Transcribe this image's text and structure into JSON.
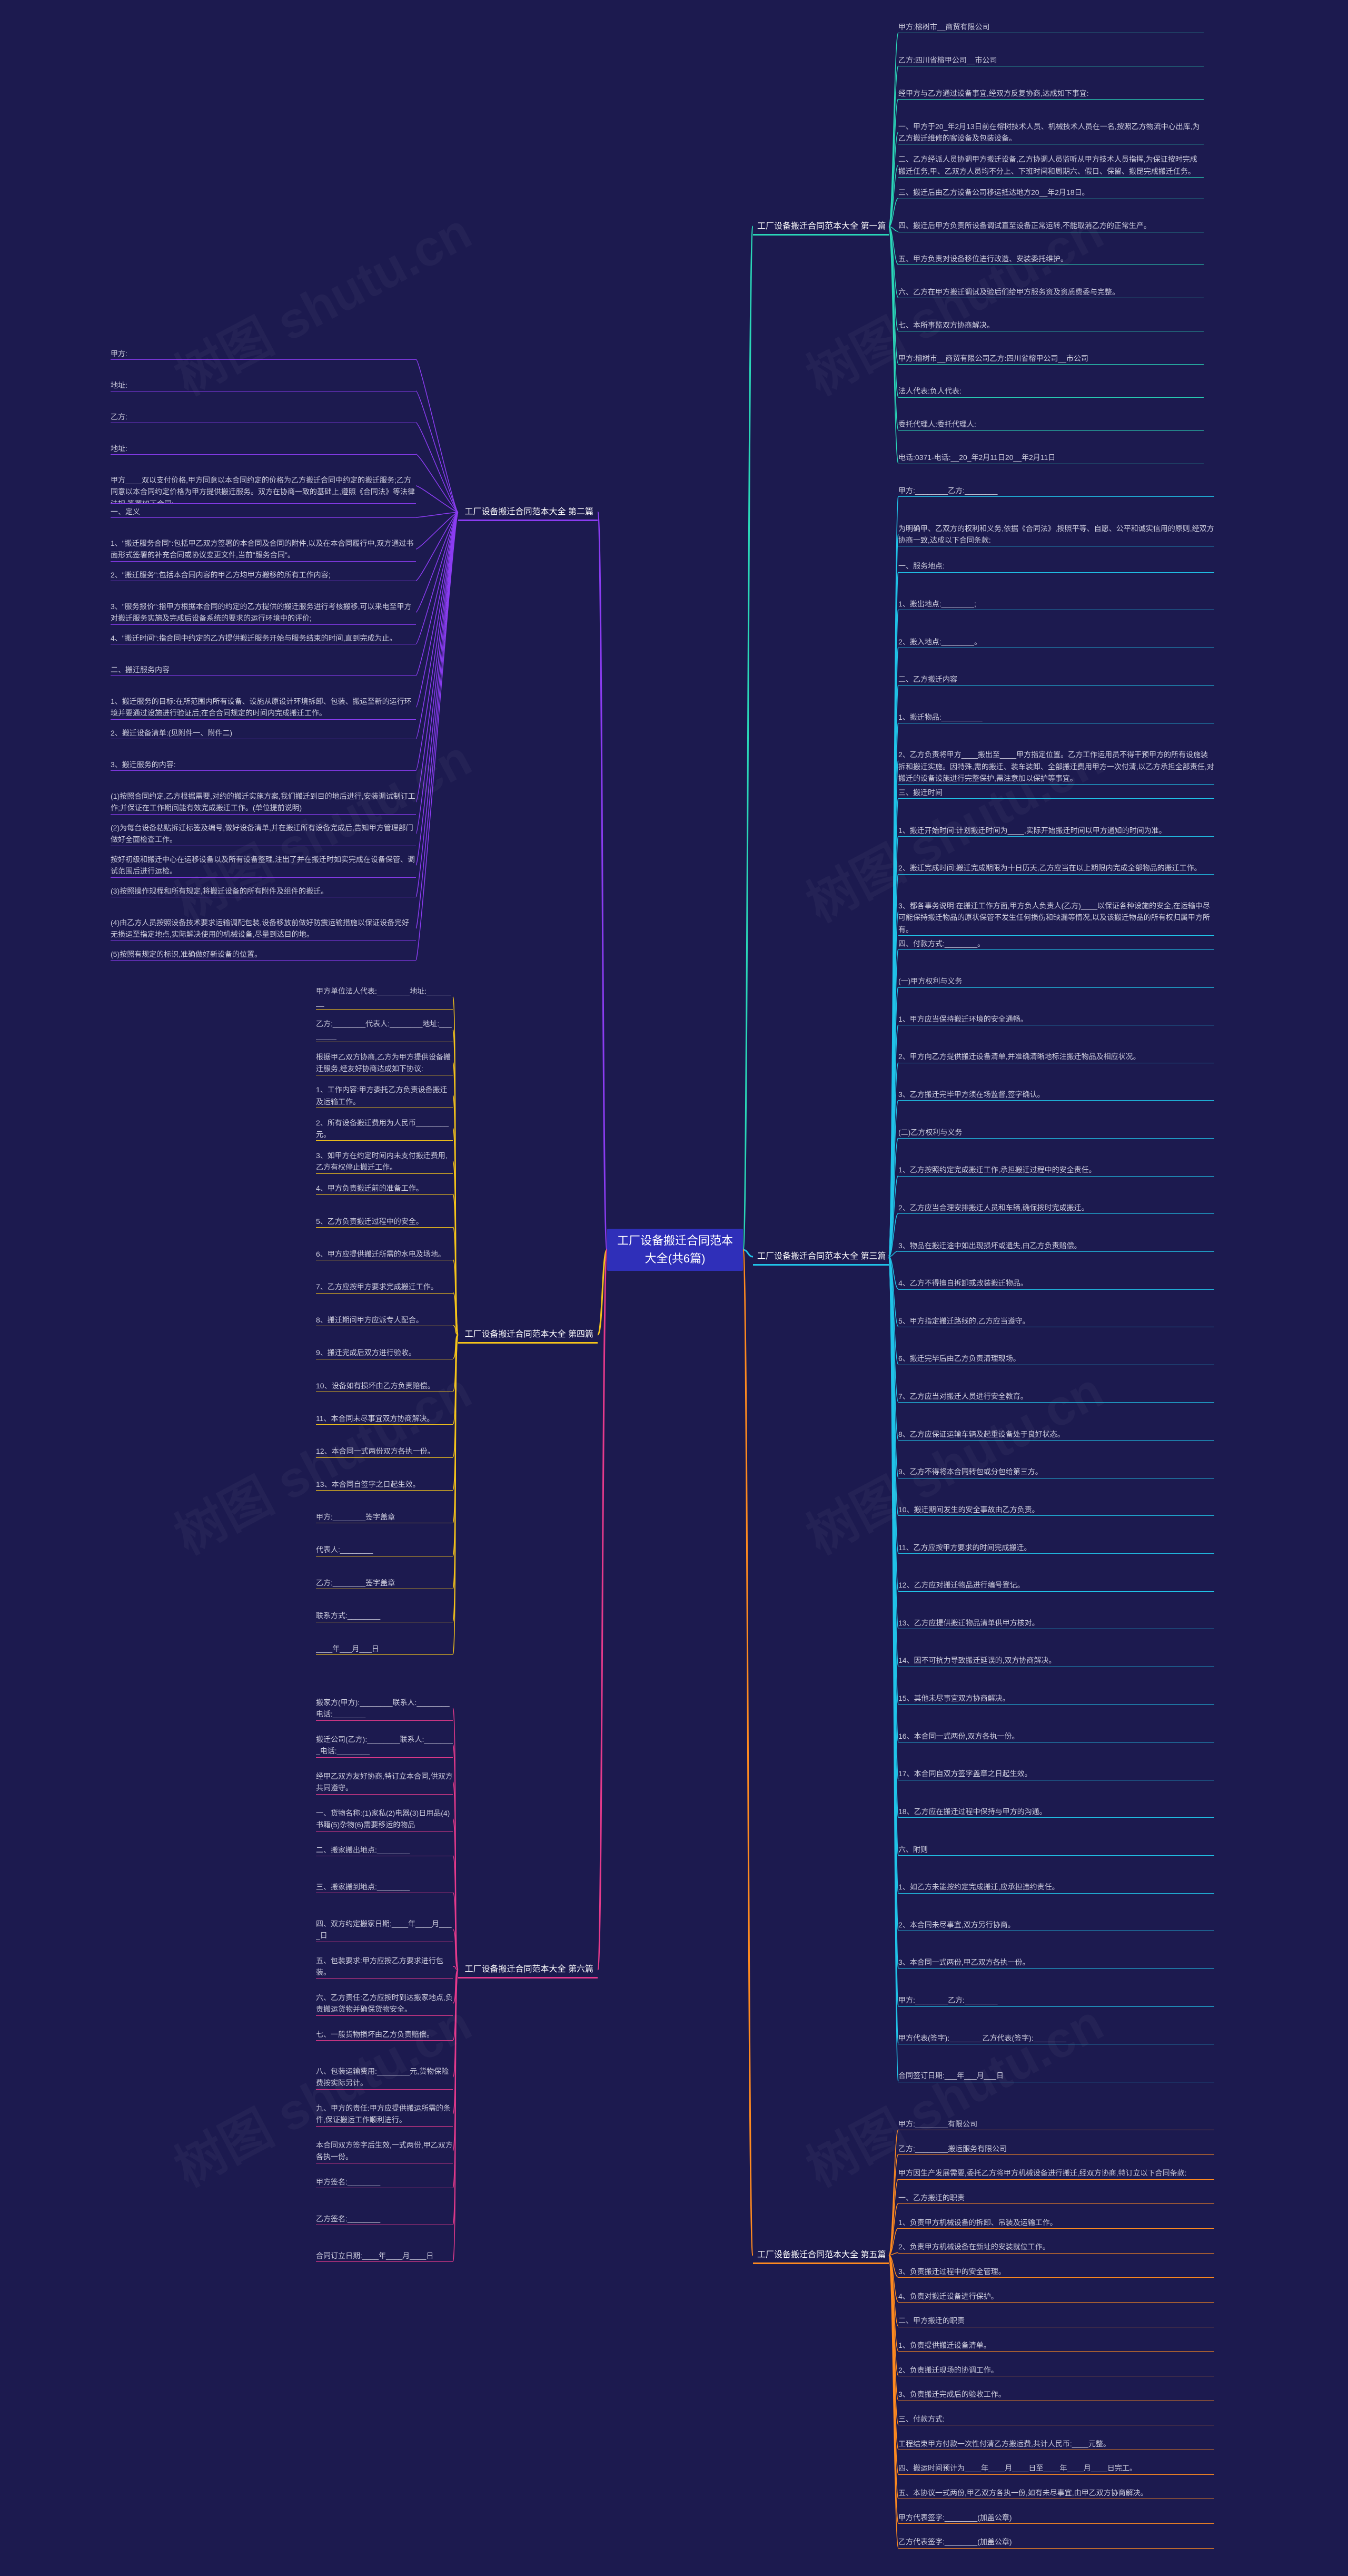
{
  "colors": {
    "background": "#1c1a4f",
    "center_fill": "#2f2fb9",
    "branch1": "#2ad7b8",
    "branch2": "#8b3cf2",
    "branch3": "#20c3e8",
    "branch4": "#f5c41a",
    "branch5": "#ff8a1f",
    "branch6": "#e63a8c"
  },
  "title": "工厂设备搬迁合同范本大全(共6篇)",
  "watermark": "树图 shutu.cn",
  "branches": {
    "b1": {
      "label": "工厂设备搬迁合同范本大全 第一篇",
      "items": [
        "甲方:榕树市__商贸有限公司",
        "乙方:四川省榕甲公司__市公司",
        "经甲方与乙方通过设备事宜,经双方反复协商,达成如下事宜:",
        "一、甲方于20_年2月13日前在榕树技术人员、机械技术人员在一名,按照乙方物流中心出库,为乙方搬迁维修的客设备及包装设备。",
        "二、乙方经派人员协调甲方搬迁设备,乙方协调人员监听从甲方技术人员指挥,为保证按时完成搬迁任务,甲、乙双方人员均不分上、下班时间和周期六、假日、保留、搬昆完成搬迁任务。",
        "三、搬迁后由乙方设备公司移运抵达地方20__年2月18日。",
        "四、搬迁后甲方负责所设备调试直至设备正常运转,不能取消乙方的正常生产。",
        "五、甲方负责对设备移位进行改造、安装委托维护。",
        "六、乙方在甲方搬迁调试及验后们给甲方服务资及资质费委与完整。",
        "七、本所事监双方协商解决。",
        "甲方:榕树市__商贸有限公司乙方:四川省榕甲公司__市公司",
        "法人代表:负人代表:",
        "委托代理人:委托代理人:",
        "电话:0371-电话:__20_年2月11日20__年2月11日"
      ]
    },
    "b2": {
      "label": "工厂设备搬迁合同范本大全 第二篇",
      "items": [
        "甲方:",
        "地址:",
        "乙方:",
        "地址:",
        "甲方____双以支付价格,甲方同意以本合同约定的价格为乙方搬迁合同中约定的搬迁服务;乙方同意以本合同约定价格为甲方提供搬迁服务。双方在协商一致的基础上,遵照《合同法》等法律法规,签署如下合同:",
        "一、定义",
        "1、\"搬迁服务合同\":包括甲乙双方签署的本合同及合同的附件,以及在本合同履行中,双方通过书面形式签署的补充合同或协议变更文件,当前\"服务合同\"。",
        "2、\"搬迁服务\":包括本合同内容的甲乙方均甲方搬移的所有工作内容;",
        "3、\"服务报价\":指甲方根据本合同的约定的乙方提供的搬迁服务进行考核搬移,可以来电至甲方对搬迁服务实施及完成后设备系统的要求的运行环境中的评价;",
        "4、\"搬迁时间\":指合同中约定的乙方提供搬迁服务开始与服务结束的时间,直到完成为止。",
        "二、搬迁服务内容",
        "1、搬迁服务的目标:在所范围内所有设备、设施从原设计环境拆卸、包装、搬运至新的运行环境并要通过设施进行验证后;在合合同规定的时间内完成搬迁工作。",
        "2、搬迁设备清单:(见附件一、附件二)",
        "3、搬迁服务的内容:",
        "(1)按照合同约定,乙方根据需要,对约的搬迁实施方案,我们搬迁到目的地后进行,安装调试制订工作;并保证在工作期间能有效完成搬迁工作。(单位提前说明)",
        "(2)为每台设备粘贴拆迁标签及编号,做好设备清单,并在搬迁所有设备完成后,告知甲方管理部门做好全面检查工作。",
        "按好初级和搬迁中心在运移设备以及所有设备整理,注出了并在搬迁时如实完成在设备保管、调试范围后进行运检。",
        "(3)按照操作规程和所有规定,将搬迁设备的所有附件及组件的搬迁。",
        "(4)由乙方人员按照设备技术要求运输调配包装,设备移放前做好防震运输措施以保证设备完好无损运至指定地点,实际解决使用的机械设备,尽量到达目的地。",
        "(5)按照有规定的标识,准确做好新设备的位置。"
      ]
    },
    "b3": {
      "label": "工厂设备搬迁合同范本大全 第三篇",
      "items": [
        "甲方:________乙方:________",
        "为明确甲、乙双方的权利和义务,依据《合同法》,按照平等、自愿、公平和诚实信用的原则,经双方协商一致,达成以下合同条款:",
        "一、服务地点:",
        "1、搬出地点:________;",
        "2、搬入地点:________。",
        "二、乙方搬迁内容",
        "1、搬迁物品:__________",
        "2、乙方负责将甲方____搬出至____甲方指定位置。乙方工作运用员不得干预甲方的所有设施装拆和搬迁实施。因特殊,需的搬迁、装车装卸、全部搬迁费用甲方一次付清,以乙方承担全部责任,对搬迁的设备设施进行完整保护,需注意加以保护等事宜。",
        "三、搬迁时间",
        "1、搬迁开始时间:计划搬迁时间为____,实际开始搬迁时间以甲方通知的时间为准。",
        "2、搬迁完成时间:搬迁完成期限为十日历天,乙方应当在以上期限内完成全部物品的搬迁工作。",
        "3、都各事务说明:在搬迁工作方面,甲方负人负责人(乙方)____以保证各种设施的安全,在运输中尽可能保持搬迁物品的原状保管不发生任何损伤和缺漏等情况,以及该搬迁物品的所有权归属甲方所有。",
        "四、付款方式:________。",
        "(一)甲方权利与义务",
        "1、甲方应当保持搬迁环境的安全通畅。",
        "2、甲方向乙方提供搬迁设备清单,并准确清晰地标注搬迁物品及相应状况。",
        "3、乙方搬迁完毕甲方须在场监督,签字确认。",
        "(二)乙方权利与义务",
        "1、乙方按照约定完成搬迁工作,承担搬迁过程中的安全责任。",
        "2、乙方应当合理安排搬迁人员和车辆,确保按时完成搬迁。",
        "3、物品在搬迁途中如出现损坏或遗失,由乙方负责赔偿。",
        "4、乙方不得擅自拆卸或改装搬迁物品。",
        "5、甲方指定搬迁路线的,乙方应当遵守。",
        "6、搬迁完毕后由乙方负责清理现场。",
        "7、乙方应当对搬迁人员进行安全教育。",
        "8、乙方应保证运输车辆及起重设备处于良好状态。",
        "9、乙方不得将本合同转包或分包给第三方。",
        "10、搬迁期间发生的安全事故由乙方负责。",
        "11、乙方应按甲方要求的时间完成搬迁。",
        "12、乙方应对搬迁物品进行编号登记。",
        "13、乙方应提供搬迁物品清单供甲方核对。",
        "14、因不可抗力导致搬迁延误的,双方协商解决。",
        "15、其他未尽事宜双方协商解决。",
        "16、本合同一式两份,双方各执一份。",
        "17、本合同自双方签字盖章之日起生效。",
        "18、乙方应在搬迁过程中保持与甲方的沟通。",
        "六、附则",
        "1、如乙方未能按约定完成搬迁,应承担违约责任。",
        "2、本合同未尽事宜,双方另行协商。",
        "3、本合同一式两份,甲乙双方各执一份。",
        "甲方:________乙方:________",
        "甲方代表(签字):________乙方代表(签字):________",
        "合同签订日期:___年___月___日"
      ]
    },
    "b4": {
      "label": "工厂设备搬迁合同范本大全 第四篇",
      "items": [
        "甲方单位法人代表:________地址:________",
        "乙方:________代表人:________地址:________",
        "根据甲乙双方协商,乙方为甲方提供设备搬迁服务,经友好协商达成如下协议:",
        "1、工作内容:甲方委托乙方负责设备搬迁及运输工作。",
        "2、所有设备搬迁费用为人民币________元。",
        "3、如甲方在约定时间内未支付搬迁费用,乙方有权停止搬迁工作。",
        "4、甲方负责搬迁前的准备工作。",
        "5、乙方负责搬迁过程中的安全。",
        "6、甲方应提供搬迁所需的水电及场地。",
        "7、乙方应按甲方要求完成搬迁工作。",
        "8、搬迁期间甲方应派专人配合。",
        "9、搬迁完成后双方进行验收。",
        "10、设备如有损坏由乙方负责赔偿。",
        "11、本合同未尽事宜双方协商解决。",
        "12、本合同一式两份双方各执一份。",
        "13、本合同自签字之日起生效。",
        "甲方:________签字盖章",
        "代表人:________",
        "乙方:________签字盖章",
        "联系方式:________",
        "____年___月___日"
      ]
    },
    "b5": {
      "label": "工厂设备搬迁合同范本大全 第五篇",
      "items": [
        "甲方:________有限公司",
        "乙方:________搬运服务有限公司",
        "甲方因生产发展需要,委托乙方将甲方机械设备进行搬迁,经双方协商,特订立以下合同条款:",
        "一、乙方搬迁的职责",
        "1、负责甲方机械设备的拆卸、吊装及运输工作。",
        "2、负责甲方机械设备在新址的安装就位工作。",
        "3、负责搬迁过程中的安全管理。",
        "4、负责对搬迁设备进行保护。",
        "二、甲方搬迁的职责",
        "1、负责提供搬迁设备清单。",
        "2、负责搬迁现场的协调工作。",
        "3、负责搬迁完成后的验收工作。",
        "三、付款方式:",
        "工程结束甲方付款一次性付清乙方搬运费,共计人民币:____元整。",
        "四、搬运时间预计为____年____月____日至____年____月____日完工。",
        "五、本协议一式两份,甲乙双方各执一份,如有未尽事宜,由甲乙双方协商解决。",
        "甲方代表签字:________(加盖公章)",
        "乙方代表签字:________(加盖公章)"
      ]
    },
    "b6": {
      "label": "工厂设备搬迁合同范本大全 第六篇",
      "items": [
        "搬家方(甲方):________联系人:________电话:________",
        "搬迁公司(乙方):________联系人:________电话:________",
        "经甲乙双方友好协商,特订立本合同,供双方共同遵守。",
        "一、货物名称:(1)家私(2)电器(3)日用品(4)书籍(5)杂物(6)需要移运的物品",
        "二、搬家搬出地点:________",
        "三、搬家搬到地点:________",
        "四、双方约定搬家日期:____年____月____日",
        "五、包装要求:甲方应按乙方要求进行包装。",
        "六、乙方责任:乙方应按时到达搬家地点,负责搬运货物并确保货物安全。",
        "七、一般货物损坏由乙方负责赔偿。",
        "八、包装运输费用:________元,货物保险费按实际另计。",
        "九、甲方的责任:甲方应提供搬运所需的条件,保证搬运工作顺利进行。",
        "本合同双方签字后生效,一式两份,甲乙双方各执一份。",
        "甲方签名:________",
        "乙方签名:________",
        "合同订立日期:____年____月____日"
      ]
    }
  }
}
